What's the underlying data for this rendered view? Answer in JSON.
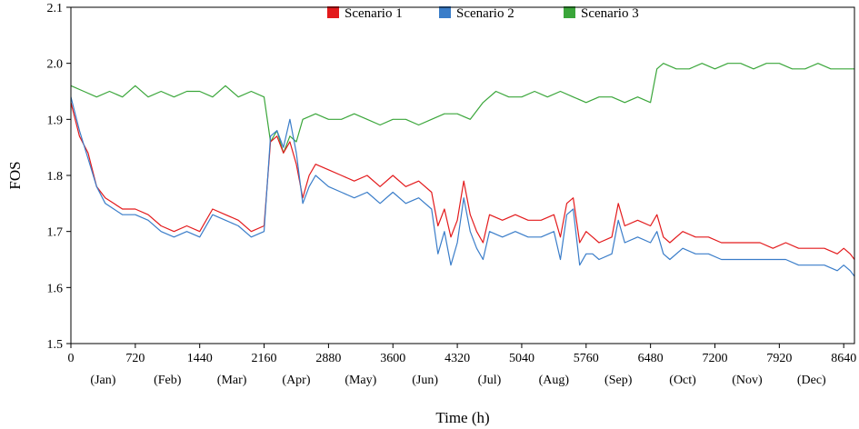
{
  "chart_data": {
    "type": "line",
    "title": "",
    "xlabel": "Time (h)",
    "ylabel": "FOS",
    "xlim": [
      0,
      8760
    ],
    "ylim": [
      1.5,
      2.1
    ],
    "grid": false,
    "legend_position": "top-center",
    "x_ticks": [
      0,
      720,
      1440,
      2160,
      2880,
      3600,
      4320,
      5040,
      5760,
      6480,
      7200,
      7920,
      8640
    ],
    "y_ticks": [
      1.5,
      1.6,
      1.7,
      1.8,
      1.9,
      2.0,
      2.1
    ],
    "x_tick_labels": [
      "0",
      "720",
      "1440",
      "2160",
      "2880",
      "3600",
      "4320",
      "5040",
      "5760",
      "6480",
      "7200",
      "7920",
      "8640"
    ],
    "y_tick_labels": [
      "1.5",
      "1.6",
      "1.7",
      "1.8",
      "1.9",
      "2.0",
      "2.1"
    ],
    "months": [
      {
        "label": "(Jan)",
        "x": 360
      },
      {
        "label": "(Feb)",
        "x": 1080
      },
      {
        "label": "(Mar)",
        "x": 1800
      },
      {
        "label": "(Apr)",
        "x": 2520
      },
      {
        "label": "(May)",
        "x": 3240
      },
      {
        "label": "(Jun)",
        "x": 3960
      },
      {
        "label": "(Jul)",
        "x": 4680
      },
      {
        "label": "(Aug)",
        "x": 5400
      },
      {
        "label": "(Sep)",
        "x": 6120
      },
      {
        "label": "(Oct)",
        "x": 6840
      },
      {
        "label": "(Nov)",
        "x": 7560
      },
      {
        "label": "(Dec)",
        "x": 8280
      }
    ],
    "series": [
      {
        "name": "Scenario 1",
        "color": "#e31a1c",
        "x": [
          0,
          96,
          192,
          288,
          384,
          480,
          576,
          720,
          864,
          1008,
          1152,
          1296,
          1440,
          1584,
          1728,
          1872,
          2016,
          2160,
          2232,
          2304,
          2376,
          2448,
          2520,
          2592,
          2664,
          2736,
          2880,
          3024,
          3168,
          3312,
          3456,
          3600,
          3744,
          3888,
          4032,
          4104,
          4176,
          4248,
          4320,
          4392,
          4464,
          4536,
          4608,
          4680,
          4824,
          4968,
          5112,
          5256,
          5400,
          5472,
          5544,
          5616,
          5688,
          5760,
          5832,
          5904,
          6048,
          6120,
          6192,
          6336,
          6480,
          6552,
          6624,
          6696,
          6840,
          6984,
          7128,
          7272,
          7416,
          7560,
          7704,
          7848,
          7992,
          8136,
          8280,
          8424,
          8568,
          8640,
          8712,
          8760
        ],
        "y": [
          1.93,
          1.87,
          1.84,
          1.78,
          1.76,
          1.75,
          1.74,
          1.74,
          1.73,
          1.71,
          1.7,
          1.71,
          1.7,
          1.74,
          1.73,
          1.72,
          1.7,
          1.71,
          1.86,
          1.87,
          1.84,
          1.86,
          1.82,
          1.76,
          1.8,
          1.82,
          1.81,
          1.8,
          1.79,
          1.8,
          1.78,
          1.8,
          1.78,
          1.79,
          1.77,
          1.71,
          1.74,
          1.69,
          1.72,
          1.79,
          1.73,
          1.7,
          1.68,
          1.73,
          1.72,
          1.73,
          1.72,
          1.72,
          1.73,
          1.69,
          1.75,
          1.76,
          1.68,
          1.7,
          1.69,
          1.68,
          1.69,
          1.75,
          1.71,
          1.72,
          1.71,
          1.73,
          1.69,
          1.68,
          1.7,
          1.69,
          1.69,
          1.68,
          1.68,
          1.68,
          1.68,
          1.67,
          1.68,
          1.67,
          1.67,
          1.67,
          1.66,
          1.67,
          1.66,
          1.65
        ]
      },
      {
        "name": "Scenario 2",
        "color": "#3a7dc9",
        "x": [
          0,
          96,
          192,
          288,
          384,
          480,
          576,
          720,
          864,
          1008,
          1152,
          1296,
          1440,
          1584,
          1728,
          1872,
          2016,
          2160,
          2232,
          2304,
          2376,
          2448,
          2520,
          2592,
          2664,
          2736,
          2880,
          3024,
          3168,
          3312,
          3456,
          3600,
          3744,
          3888,
          4032,
          4104,
          4176,
          4248,
          4320,
          4392,
          4464,
          4536,
          4608,
          4680,
          4824,
          4968,
          5112,
          5256,
          5400,
          5472,
          5544,
          5616,
          5688,
          5760,
          5832,
          5904,
          6048,
          6120,
          6192,
          6336,
          6480,
          6552,
          6624,
          6696,
          6840,
          6984,
          7128,
          7272,
          7416,
          7560,
          7704,
          7848,
          7992,
          8136,
          8280,
          8424,
          8568,
          8640,
          8712,
          8760
        ],
        "y": [
          1.94,
          1.88,
          1.83,
          1.78,
          1.75,
          1.74,
          1.73,
          1.73,
          1.72,
          1.7,
          1.69,
          1.7,
          1.69,
          1.73,
          1.72,
          1.71,
          1.69,
          1.7,
          1.87,
          1.88,
          1.85,
          1.9,
          1.84,
          1.75,
          1.78,
          1.8,
          1.78,
          1.77,
          1.76,
          1.77,
          1.75,
          1.77,
          1.75,
          1.76,
          1.74,
          1.66,
          1.7,
          1.64,
          1.68,
          1.76,
          1.7,
          1.67,
          1.65,
          1.7,
          1.69,
          1.7,
          1.69,
          1.69,
          1.7,
          1.65,
          1.73,
          1.74,
          1.64,
          1.66,
          1.66,
          1.65,
          1.66,
          1.72,
          1.68,
          1.69,
          1.68,
          1.7,
          1.66,
          1.65,
          1.67,
          1.66,
          1.66,
          1.65,
          1.65,
          1.65,
          1.65,
          1.65,
          1.65,
          1.64,
          1.64,
          1.64,
          1.63,
          1.64,
          1.63,
          1.62
        ]
      },
      {
        "name": "Scenario 3",
        "color": "#3aa63a",
        "x": [
          0,
          144,
          288,
          432,
          576,
          720,
          864,
          1008,
          1152,
          1296,
          1440,
          1584,
          1728,
          1872,
          2016,
          2160,
          2232,
          2304,
          2376,
          2448,
          2520,
          2592,
          2736,
          2880,
          3024,
          3168,
          3312,
          3456,
          3600,
          3744,
          3888,
          4032,
          4176,
          4320,
          4464,
          4608,
          4752,
          4896,
          5040,
          5184,
          5328,
          5472,
          5616,
          5760,
          5904,
          6048,
          6192,
          6336,
          6480,
          6552,
          6624,
          6768,
          6912,
          7056,
          7200,
          7344,
          7488,
          7632,
          7776,
          7920,
          8064,
          8208,
          8352,
          8496,
          8640,
          8760
        ],
        "y": [
          1.96,
          1.95,
          1.94,
          1.95,
          1.94,
          1.96,
          1.94,
          1.95,
          1.94,
          1.95,
          1.95,
          1.94,
          1.96,
          1.94,
          1.95,
          1.94,
          1.86,
          1.88,
          1.84,
          1.87,
          1.86,
          1.9,
          1.91,
          1.9,
          1.9,
          1.91,
          1.9,
          1.89,
          1.9,
          1.9,
          1.89,
          1.9,
          1.91,
          1.91,
          1.9,
          1.93,
          1.95,
          1.94,
          1.94,
          1.95,
          1.94,
          1.95,
          1.94,
          1.93,
          1.94,
          1.94,
          1.93,
          1.94,
          1.93,
          1.99,
          2.0,
          1.99,
          1.99,
          2.0,
          1.99,
          2.0,
          2.0,
          1.99,
          2.0,
          2.0,
          1.99,
          1.99,
          2.0,
          1.99,
          1.99,
          1.99
        ]
      }
    ]
  }
}
